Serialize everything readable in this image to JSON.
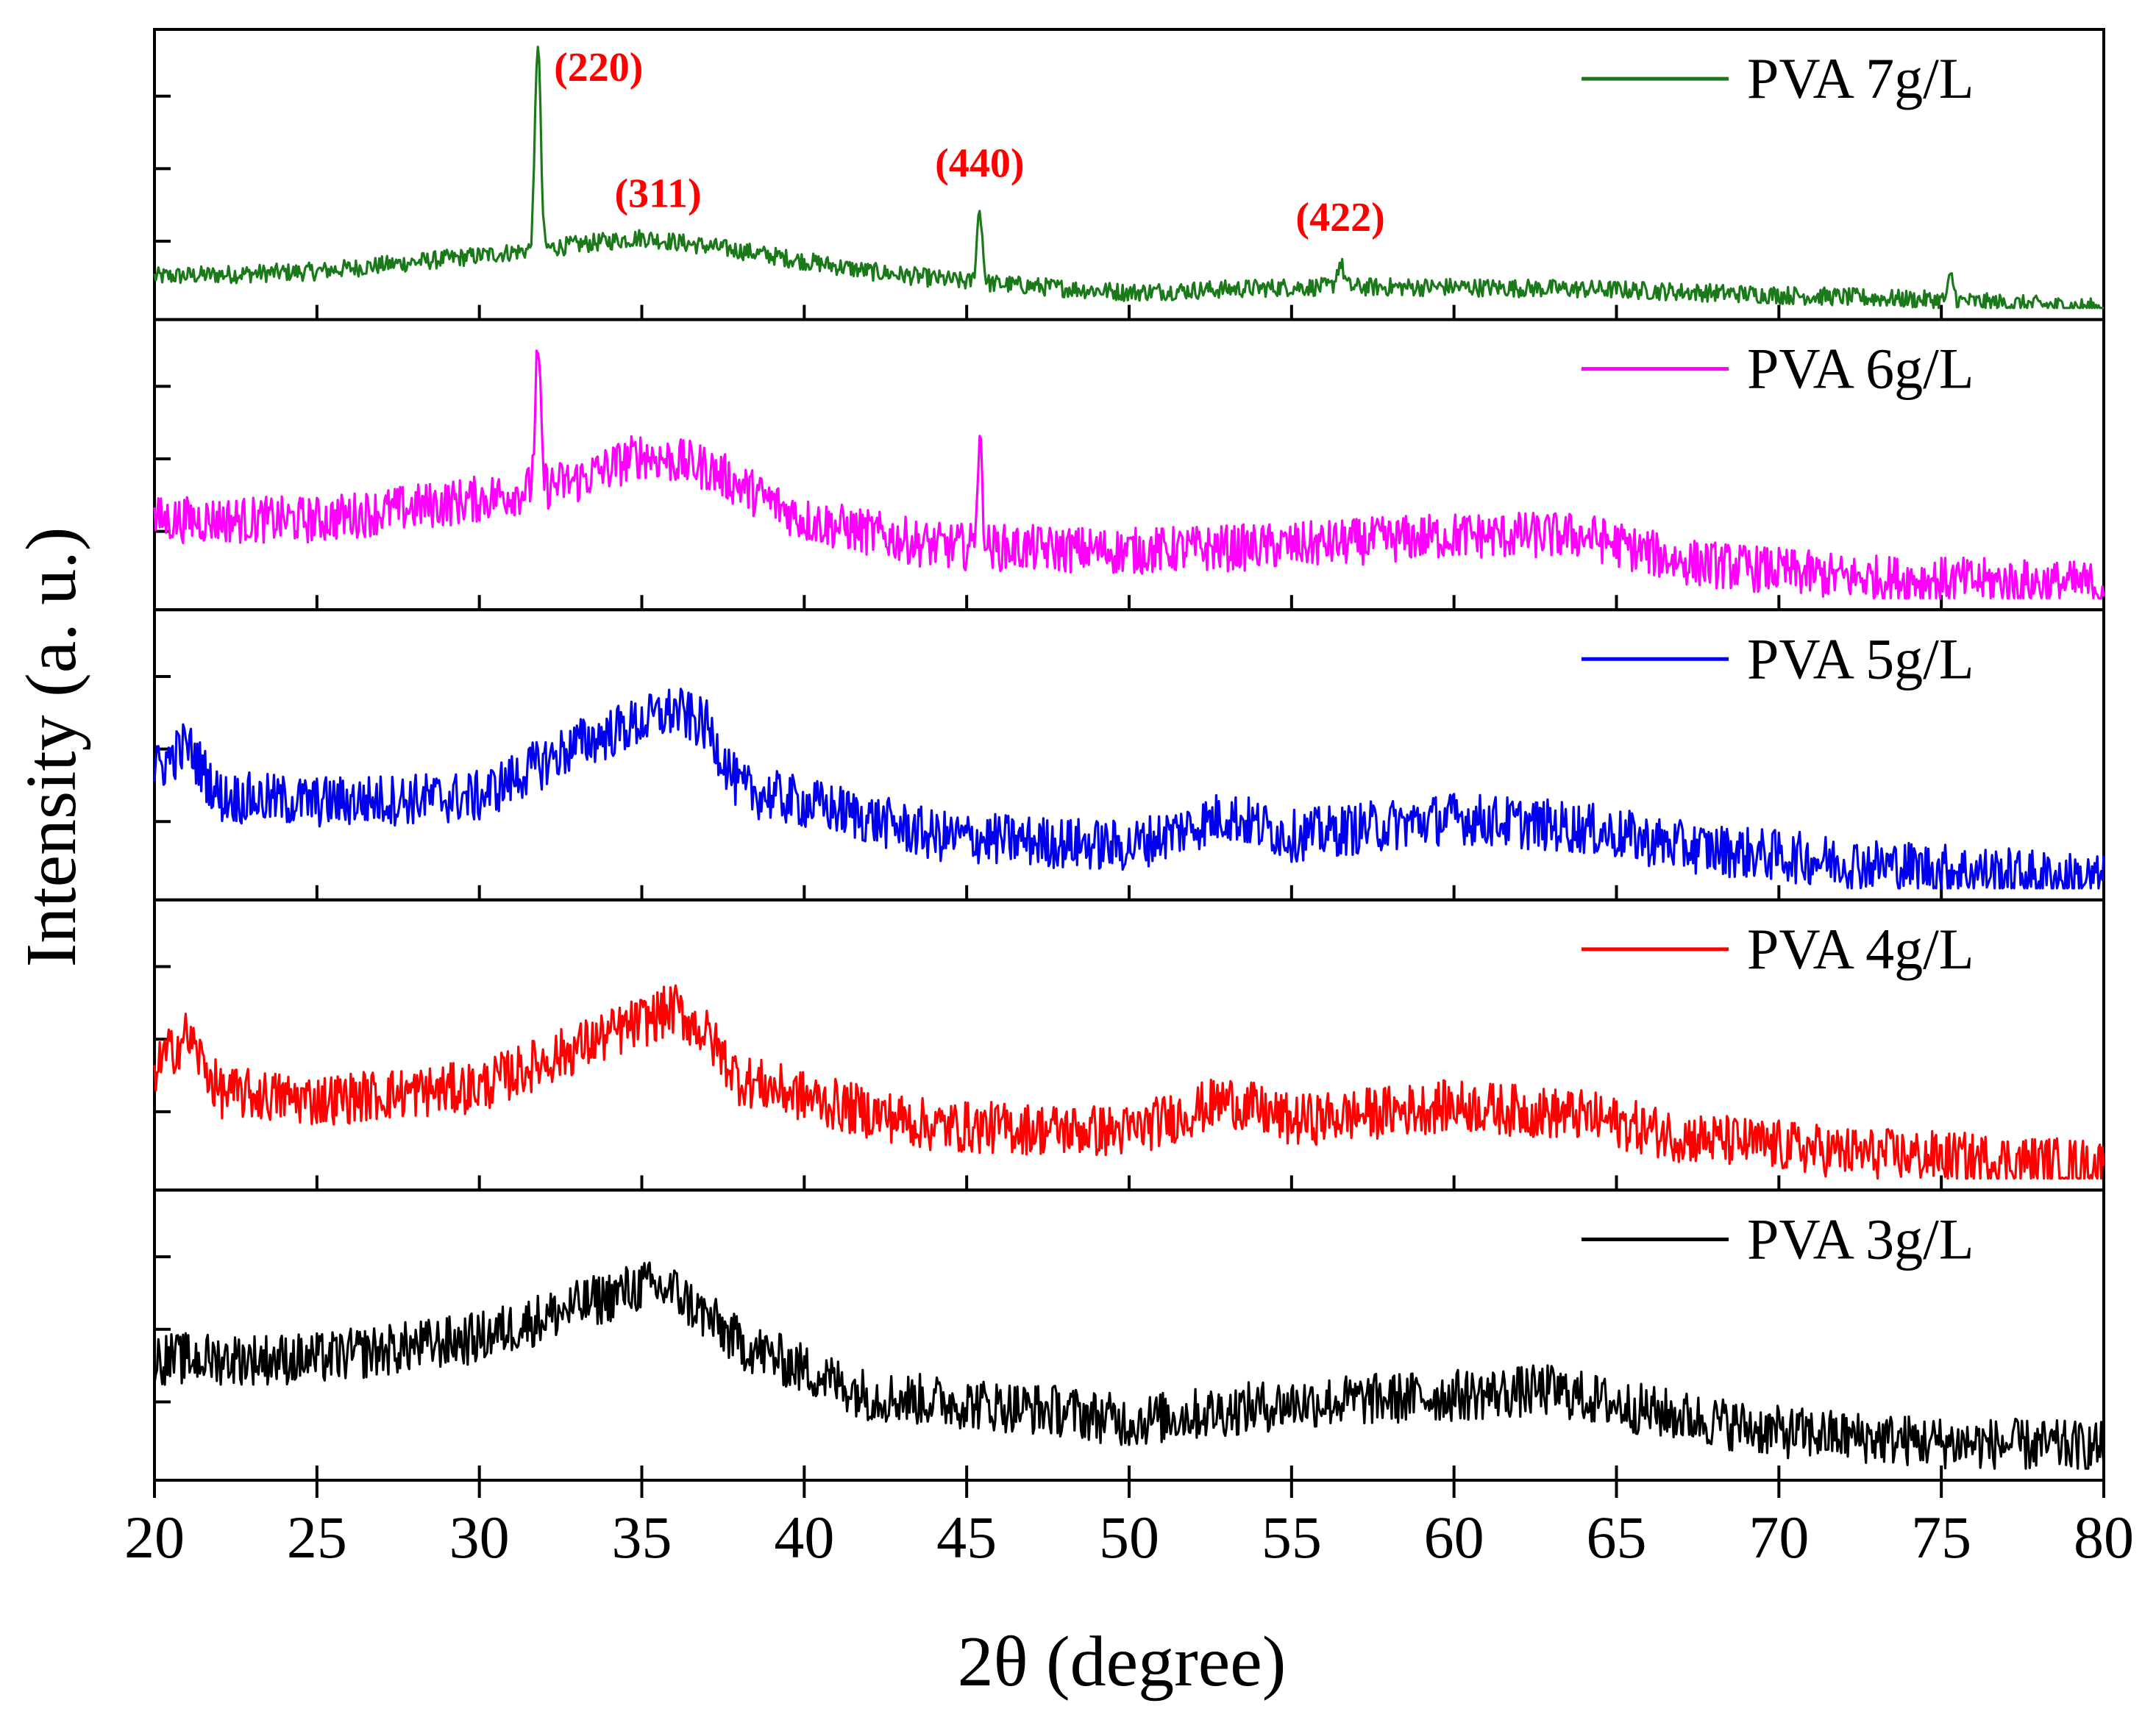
{
  "chart_data": {
    "type": "line",
    "title": "",
    "xlabel": "2θ (degree)",
    "ylabel": "Intensity (a. u.)",
    "xlim": [
      20,
      80
    ],
    "xticks": [
      20,
      25,
      30,
      35,
      40,
      45,
      50,
      55,
      60,
      65,
      70,
      75,
      80
    ],
    "xtick_labels": [
      "20",
      "25",
      "30",
      "35",
      "40",
      "45",
      "50",
      "55",
      "60",
      "65",
      "70",
      "75",
      "80"
    ],
    "stacked_panels": true,
    "legend_placement": "top-right of each panel",
    "series": [
      {
        "name": "PVA 7g/L",
        "color": "#1a7a1a",
        "noise": 0.035,
        "baseline": [
          [
            20,
            0.12
          ],
          [
            25,
            0.14
          ],
          [
            30,
            0.2
          ],
          [
            35,
            0.27
          ],
          [
            38,
            0.22
          ],
          [
            42,
            0.14
          ],
          [
            45,
            0.1
          ],
          [
            50,
            0.06
          ],
          [
            55,
            0.08
          ],
          [
            60,
            0.08
          ],
          [
            65,
            0.07
          ],
          [
            70,
            0.05
          ],
          [
            75,
            0.03
          ],
          [
            80,
            0.0
          ]
        ],
        "peaks": [
          {
            "x": 31.8,
            "height": 0.8,
            "width": 0.12
          },
          {
            "x": 45.4,
            "height": 0.28,
            "width": 0.12
          },
          {
            "x": 56.5,
            "height": 0.09,
            "width": 0.15
          },
          {
            "x": 75.3,
            "height": 0.09,
            "width": 0.12
          }
        ]
      },
      {
        "name": "PVA 6g/L",
        "color": "#ff00ff",
        "noise": 0.09,
        "baseline": [
          [
            20,
            0.3
          ],
          [
            25,
            0.3
          ],
          [
            30,
            0.38
          ],
          [
            33,
            0.45
          ],
          [
            35,
            0.55
          ],
          [
            37,
            0.5
          ],
          [
            40,
            0.3
          ],
          [
            44,
            0.2
          ],
          [
            50,
            0.18
          ],
          [
            55,
            0.2
          ],
          [
            60,
            0.24
          ],
          [
            64,
            0.24
          ],
          [
            67,
            0.14
          ],
          [
            72,
            0.08
          ],
          [
            80,
            0.05
          ]
        ],
        "peaks": [
          {
            "x": 31.8,
            "height": 0.5,
            "width": 0.12
          },
          {
            "x": 45.4,
            "height": 0.38,
            "width": 0.12
          }
        ]
      },
      {
        "name": "PVA 5g/L",
        "color": "#0000ee",
        "noise": 0.1,
        "baseline": [
          [
            20,
            0.45
          ],
          [
            21,
            0.55
          ],
          [
            22,
            0.35
          ],
          [
            25,
            0.33
          ],
          [
            30,
            0.35
          ],
          [
            33,
            0.55
          ],
          [
            36,
            0.68
          ],
          [
            37,
            0.62
          ],
          [
            38,
            0.38
          ],
          [
            41,
            0.3
          ],
          [
            44,
            0.2
          ],
          [
            50,
            0.16
          ],
          [
            53,
            0.28
          ],
          [
            55,
            0.2
          ],
          [
            60,
            0.27
          ],
          [
            64,
            0.23
          ],
          [
            67,
            0.16
          ],
          [
            72,
            0.1
          ],
          [
            80,
            0.03
          ]
        ],
        "peaks": []
      },
      {
        "name": "PVA 4g/L",
        "color": "#ff0000",
        "noise": 0.1,
        "baseline": [
          [
            20,
            0.42
          ],
          [
            21,
            0.55
          ],
          [
            22,
            0.33
          ],
          [
            25,
            0.3
          ],
          [
            30,
            0.35
          ],
          [
            33,
            0.5
          ],
          [
            36,
            0.65
          ],
          [
            37,
            0.55
          ],
          [
            38,
            0.38
          ],
          [
            41,
            0.28
          ],
          [
            44,
            0.2
          ],
          [
            50,
            0.18
          ],
          [
            53,
            0.3
          ],
          [
            55,
            0.22
          ],
          [
            60,
            0.28
          ],
          [
            64,
            0.24
          ],
          [
            67,
            0.16
          ],
          [
            72,
            0.1
          ],
          [
            80,
            0.05
          ]
        ],
        "peaks": []
      },
      {
        "name": "PVA 3g/L",
        "color": "#000000",
        "noise": 0.1,
        "baseline": [
          [
            20,
            0.42
          ],
          [
            25,
            0.42
          ],
          [
            30,
            0.5
          ],
          [
            35,
            0.7
          ],
          [
            36,
            0.68
          ],
          [
            38,
            0.48
          ],
          [
            42,
            0.28
          ],
          [
            48,
            0.22
          ],
          [
            50,
            0.18
          ],
          [
            55,
            0.25
          ],
          [
            60,
            0.28
          ],
          [
            63,
            0.3
          ],
          [
            66,
            0.22
          ],
          [
            70,
            0.14
          ],
          [
            75,
            0.1
          ],
          [
            80,
            0.08
          ]
        ],
        "peaks": []
      }
    ],
    "annotations": [
      {
        "text": "(220)",
        "series": "PVA 7g/L",
        "x": 31.8,
        "anchor": "right"
      },
      {
        "text": "(311)",
        "series": "PVA 7g/L",
        "x": 35.5,
        "anchor": "center"
      },
      {
        "text": "(440)",
        "series": "PVA 7g/L",
        "x": 45.4,
        "anchor": "center"
      },
      {
        "text": "(422)",
        "series": "PVA 7g/L",
        "x": 56.5,
        "anchor": "center"
      }
    ],
    "annotation_color": "#ff0000"
  }
}
